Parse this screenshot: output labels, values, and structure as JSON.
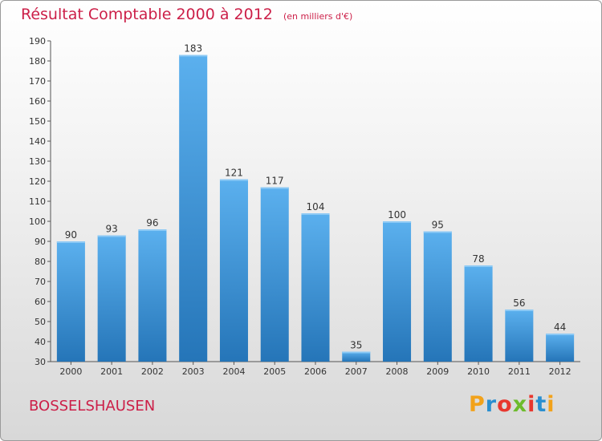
{
  "title": "Résultat Comptable 2000 à 2012",
  "subtitle": "(en milliers d'€)",
  "place": "BOSSELSHAUSEN",
  "logo": {
    "letters": [
      "P",
      "r",
      "o",
      "x",
      "i",
      "t",
      "i"
    ],
    "colors": [
      "#f2a21a",
      "#2a8fd0",
      "#e8372e",
      "#6dbb2c",
      "#e8372e",
      "#2a8fd0",
      "#f2a21a"
    ]
  },
  "colors": {
    "bar": "#3f97dd",
    "bar_top": "#5bb0ee",
    "bar_bottom": "#2575b8",
    "title": "#cc1f48"
  },
  "chart_data": {
    "type": "bar",
    "title": "Résultat Comptable 2000 à 2012",
    "ylabel": "en milliers d'€",
    "categories": [
      "2000",
      "2001",
      "2002",
      "2003",
      "2004",
      "2005",
      "2006",
      "2007",
      "2008",
      "2009",
      "2010",
      "2011",
      "2012"
    ],
    "values": [
      90,
      93,
      96,
      183,
      121,
      117,
      104,
      35,
      100,
      95,
      78,
      56,
      44
    ],
    "ylim": [
      30,
      190
    ],
    "yticks": [
      30,
      40,
      50,
      60,
      70,
      80,
      90,
      100,
      110,
      120,
      130,
      140,
      150,
      160,
      170,
      180,
      190
    ],
    "grid": false
  }
}
